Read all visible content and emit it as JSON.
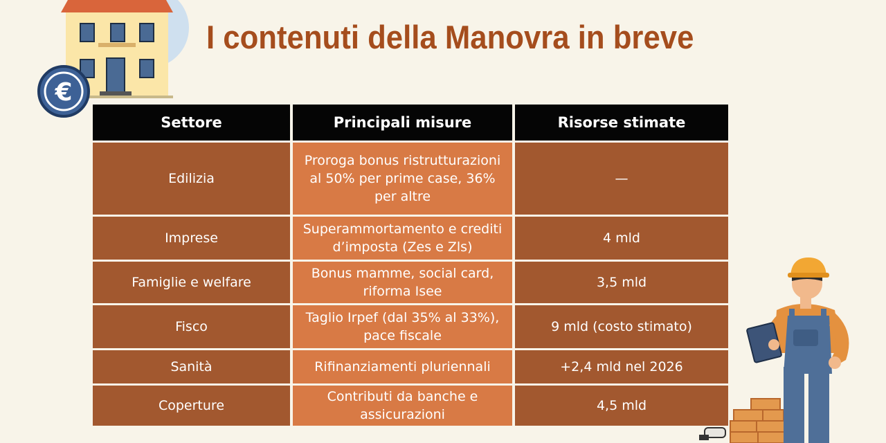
{
  "title": "I contenuti della Manovra in breve",
  "icons": {
    "euro_badge": "€",
    "house": "house-illustration",
    "worker": "construction-worker-illustration"
  },
  "table": {
    "headers": [
      "Settore",
      "Principali misure",
      "Risorse stimate"
    ],
    "rows": [
      {
        "settore": "Edilizia",
        "misure": "Proroga bonus ristrutturazioni al 50% per prime case, 36% per altre",
        "risorse": "—"
      },
      {
        "settore": "Imprese",
        "misure": "Superammortamento e crediti d’imposta (Zes e Zls)",
        "risorse": "4 mld"
      },
      {
        "settore": "Famiglie e welfare",
        "misure": "Bonus mamme, social card, riforma Isee",
        "risorse": "3,5 mld"
      },
      {
        "settore": "Fisco",
        "misure": "Taglio Irpef (dal 35% al 33%), pace fiscale",
        "risorse": "9 mld (costo stimato)"
      },
      {
        "settore": "Sanità",
        "misure": "Rifinanziamenti pluriennali",
        "risorse": "+2,4 mld nel 2026"
      },
      {
        "settore": "Coperture",
        "misure": "Contributi da banche e assicurazioni",
        "risorse": "4,5 mld"
      }
    ]
  },
  "colors": {
    "title": "#a54d1d",
    "header_bg": "#050505",
    "cell_dark": "#a2582f",
    "cell_light": "#d87a45",
    "background": "#f8f4e9"
  }
}
